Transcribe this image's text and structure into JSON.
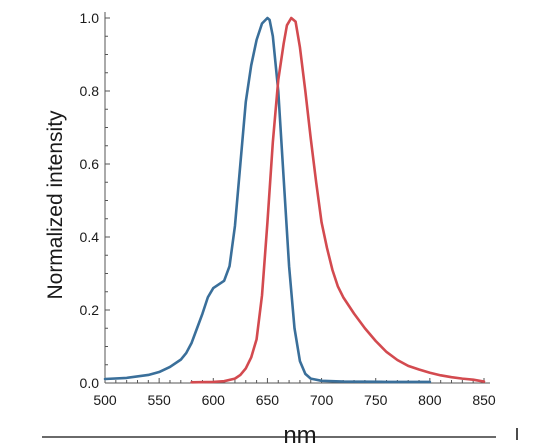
{
  "chart_data": {
    "type": "line",
    "title": "",
    "xlabel": "nm",
    "ylabel": "Normalized intensity",
    "xlim": [
      500,
      850
    ],
    "ylim": [
      0,
      1.0
    ],
    "x_ticks": [
      500,
      550,
      600,
      650,
      700,
      750,
      800,
      850
    ],
    "x_tick_labels": [
      "500",
      "550",
      "600",
      "650",
      "700",
      "750",
      "800",
      "850"
    ],
    "y_ticks": [
      0,
      0.2,
      0.4,
      0.6,
      0.8,
      1.0
    ],
    "y_tick_labels": [
      "0.0",
      "0.2",
      "0.4",
      "0.6",
      "0.8",
      "1.0"
    ],
    "grid": false,
    "legend": "none",
    "series": [
      {
        "color": "#3a6f9a",
        "x": [
          500,
          520,
          540,
          550,
          560,
          570,
          575,
          580,
          585,
          590,
          595,
          600,
          605,
          610,
          615,
          620,
          625,
          630,
          635,
          640,
          645,
          650,
          652,
          655,
          660,
          665,
          670,
          675,
          680,
          685,
          690,
          700,
          720,
          760,
          800
        ],
        "y": [
          0.011,
          0.014,
          0.022,
          0.03,
          0.044,
          0.064,
          0.082,
          0.11,
          0.15,
          0.19,
          0.235,
          0.26,
          0.27,
          0.28,
          0.32,
          0.43,
          0.6,
          0.77,
          0.87,
          0.94,
          0.985,
          1.0,
          0.995,
          0.95,
          0.8,
          0.56,
          0.32,
          0.15,
          0.06,
          0.025,
          0.012,
          0.006,
          0.004,
          0.003,
          0.003
        ]
      },
      {
        "color": "#d34a4f",
        "x": [
          580,
          600,
          610,
          620,
          625,
          630,
          635,
          640,
          645,
          650,
          655,
          660,
          665,
          668,
          672,
          676,
          680,
          685,
          690,
          695,
          700,
          705,
          710,
          715,
          720,
          730,
          740,
          750,
          760,
          770,
          780,
          790,
          800,
          810,
          820,
          830,
          840,
          850
        ],
        "y": [
          0.002,
          0.003,
          0.005,
          0.012,
          0.022,
          0.04,
          0.07,
          0.12,
          0.24,
          0.44,
          0.66,
          0.83,
          0.93,
          0.98,
          1.0,
          0.99,
          0.92,
          0.8,
          0.67,
          0.55,
          0.44,
          0.37,
          0.31,
          0.265,
          0.235,
          0.19,
          0.15,
          0.115,
          0.085,
          0.063,
          0.047,
          0.037,
          0.028,
          0.021,
          0.016,
          0.012,
          0.009,
          0.004
        ]
      }
    ]
  }
}
